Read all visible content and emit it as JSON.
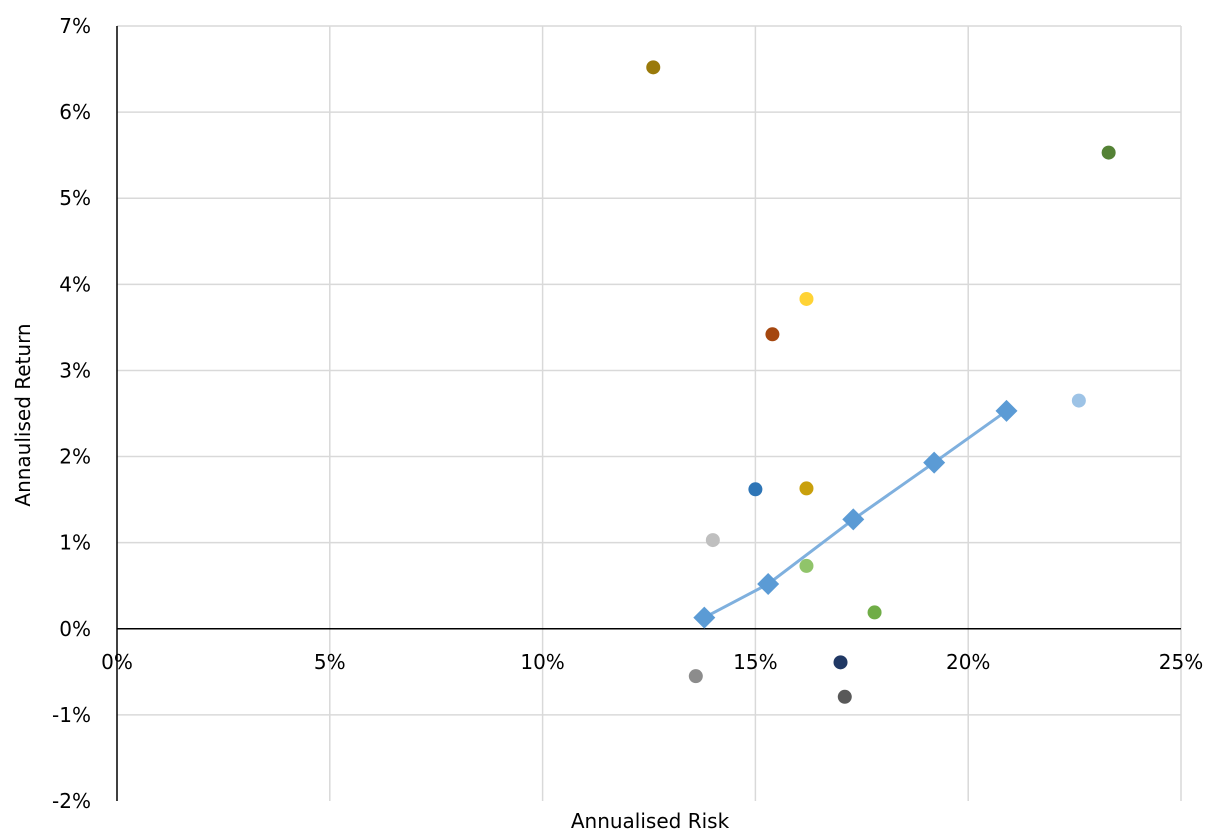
{
  "chart_data": {
    "type": "scatter",
    "title": "",
    "xlabel": "Annualised Risk",
    "ylabel": "Annaulised Return",
    "xlim": [
      0,
      0.25
    ],
    "ylim": [
      -0.02,
      0.07
    ],
    "x_ticks": [
      0,
      0.05,
      0.1,
      0.15,
      0.2,
      0.25
    ],
    "x_tick_labels": [
      "0%",
      "5%",
      "10%",
      "15%",
      "20%",
      "25%"
    ],
    "y_ticks": [
      -0.02,
      -0.01,
      0,
      0.01,
      0.02,
      0.03,
      0.04,
      0.05,
      0.06,
      0.07
    ],
    "y_tick_labels": [
      "-2%",
      "-1%",
      "0%",
      "1%",
      "2%",
      "3%",
      "4%",
      "5%",
      "6%",
      "7%"
    ],
    "grid": true,
    "legend": "none",
    "points": [
      {
        "x": 0.126,
        "y": 0.0652,
        "color": "#9a7a0a"
      },
      {
        "x": 0.233,
        "y": 0.0553,
        "color": "#548235"
      },
      {
        "x": 0.162,
        "y": 0.0383,
        "color": "#ffd335"
      },
      {
        "x": 0.154,
        "y": 0.0342,
        "color": "#a5470f"
      },
      {
        "x": 0.226,
        "y": 0.0265,
        "color": "#9dc3e6"
      },
      {
        "x": 0.15,
        "y": 0.0162,
        "color": "#2e75b6"
      },
      {
        "x": 0.162,
        "y": 0.0163,
        "color": "#c9a00c"
      },
      {
        "x": 0.14,
        "y": 0.0103,
        "color": "#bfbfbf"
      },
      {
        "x": 0.162,
        "y": 0.0073,
        "color": "#90c46a"
      },
      {
        "x": 0.178,
        "y": 0.0019,
        "color": "#70ad47"
      },
      {
        "x": 0.17,
        "y": -0.0039,
        "color": "#203864"
      },
      {
        "x": 0.136,
        "y": -0.0055,
        "color": "#8c8c8c"
      },
      {
        "x": 0.171,
        "y": -0.0079,
        "color": "#595959"
      }
    ],
    "frontier": {
      "color": "#5b9bd5",
      "line_color": "#7fb0de",
      "marker": "diamond",
      "x": [
        0.138,
        0.153,
        0.173,
        0.192,
        0.209
      ],
      "y": [
        0.0013,
        0.0052,
        0.0127,
        0.0193,
        0.0253
      ]
    }
  }
}
